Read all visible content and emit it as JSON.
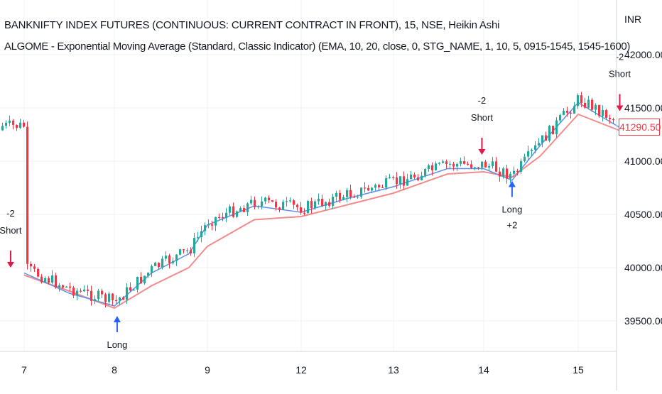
{
  "title_line1": "BANKNIFTY INDEX FUTURES (CONTINUOUS: CURRENT CONTRACT IN FRONT), 15, NSE, Heikin Ashi",
  "title_line2": "ALGOME - Exponential Moving Average (Standard, Classic Indicator) (EMA, 10, 20, close, 0, STG_NAME, 1, 10, 5, 0915-1545, 1545-1600)",
  "colors": {
    "up": "#26a69a",
    "down": "#f23645",
    "ema_fast": "#5b8ff0",
    "ema_slow": "#f28b8b",
    "short_arrow": "#e0194a",
    "long_arrow": "#2962ff",
    "grid": "#eef0f3"
  },
  "chart_data": {
    "type": "candlestick",
    "currency_label": "INR",
    "y_ticks": [
      "42000.00",
      "41500.00",
      "41000.00",
      "40500.00",
      "40000.00",
      "39500.00"
    ],
    "x_ticks": [
      "7",
      "8",
      "9",
      "12",
      "13",
      "14",
      "15"
    ],
    "last_price": "41290.50",
    "ylim": [
      39250,
      42330
    ],
    "series": [
      {
        "name": "EMA 10",
        "points": [
          [
            "7",
            39950
          ],
          [
            "7.5",
            39760
          ],
          [
            "8",
            39640
          ],
          [
            "8.4",
            39950
          ],
          [
            "8.8",
            40130
          ],
          [
            "9",
            40400
          ],
          [
            "9.5",
            40580
          ],
          [
            "12",
            40520
          ],
          [
            "12.5",
            40650
          ],
          [
            "13",
            40760
          ],
          [
            "13.6",
            40930
          ],
          [
            "14",
            40930
          ],
          [
            "14.3",
            40820
          ],
          [
            "14.6",
            41150
          ],
          [
            "15",
            41550
          ],
          [
            "15.5",
            41290
          ]
        ]
      },
      {
        "name": "EMA 20",
        "points": [
          [
            "7",
            39930
          ],
          [
            "7.5",
            39780
          ],
          [
            "8",
            39620
          ],
          [
            "8.4",
            39830
          ],
          [
            "8.8",
            40000
          ],
          [
            "9",
            40200
          ],
          [
            "9.5",
            40450
          ],
          [
            "12",
            40480
          ],
          [
            "12.5",
            40590
          ],
          [
            "13",
            40700
          ],
          [
            "13.6",
            40880
          ],
          [
            "14",
            40900
          ],
          [
            "14.3",
            40850
          ],
          [
            "14.6",
            41050
          ],
          [
            "15",
            41440
          ],
          [
            "15.5",
            41270
          ]
        ]
      }
    ],
    "signals": [
      {
        "text1": "-2",
        "text2": "Short",
        "x": "6.85",
        "price": 39960,
        "dir": "short"
      },
      {
        "text1": "Long",
        "text2": "",
        "x": "8.03",
        "price": 39580,
        "dir": "long"
      },
      {
        "text1": "-2",
        "text2": "Short",
        "x": "13.98",
        "price": 41020,
        "dir": "short"
      },
      {
        "text1": "Long",
        "text2": "+2",
        "x": "14.3",
        "price": 40850,
        "dir": "long"
      },
      {
        "text1": "-2",
        "text2": "Short",
        "x": "15.45",
        "price": 41430,
        "dir": "short"
      }
    ]
  }
}
